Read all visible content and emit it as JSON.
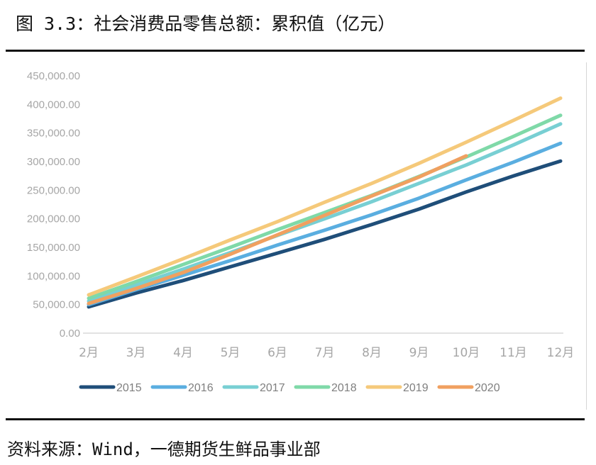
{
  "header": {
    "title": "图 3.3：社会消费品零售总额：累积值（亿元）"
  },
  "footer": {
    "source": "资料来源：Wind，一德期货生鲜品事业部"
  },
  "chart_data": {
    "type": "line",
    "title": "图 3.3：社会消费品零售总额：累积值（亿元）",
    "xlabel": "",
    "ylabel": "",
    "categories": [
      "2月",
      "3月",
      "4月",
      "5月",
      "6月",
      "7月",
      "8月",
      "9月",
      "10月",
      "11月",
      "12月"
    ],
    "ylim": [
      0,
      450000
    ],
    "yticks": [
      0,
      50000,
      100000,
      150000,
      200000,
      250000,
      300000,
      350000,
      400000,
      450000
    ],
    "ytick_labels": [
      "0.00",
      "50,000.00",
      "100,000.00",
      "150,000.00",
      "200,000.00",
      "250,000.00",
      "300,000.00",
      "350,000.00",
      "400,000.00",
      "450,000.00"
    ],
    "grid": false,
    "legend_position": "bottom",
    "series": [
      {
        "name": "2015",
        "color": "#1f4e79",
        "values": [
          46000,
          70000,
          92000,
          116000,
          140000,
          164000,
          190000,
          217000,
          247000,
          275000,
          301000
        ]
      },
      {
        "name": "2016",
        "color": "#5aaee0",
        "values": [
          50000,
          76000,
          101000,
          127000,
          154000,
          180000,
          207000,
          236000,
          268000,
          299000,
          332000
        ]
      },
      {
        "name": "2017",
        "color": "#78cfd3",
        "values": [
          56000,
          84000,
          112000,
          141000,
          171000,
          200000,
          230000,
          262000,
          294000,
          329000,
          366000
        ]
      },
      {
        "name": "2018",
        "color": "#7fd9a8",
        "values": [
          61000,
          90000,
          120000,
          150000,
          181000,
          211000,
          241000,
          274000,
          308000,
          344000,
          381000
        ]
      },
      {
        "name": "2019",
        "color": "#f5c97a",
        "values": [
          67000,
          98000,
          130000,
          163000,
          195000,
          229000,
          262000,
          297000,
          334000,
          372000,
          411000
        ]
      },
      {
        "name": "2020",
        "color": "#f0a060",
        "values": [
          52000,
          78000,
          106000,
          138000,
          172000,
          206000,
          240000,
          273000,
          310000,
          null,
          null
        ]
      }
    ]
  }
}
